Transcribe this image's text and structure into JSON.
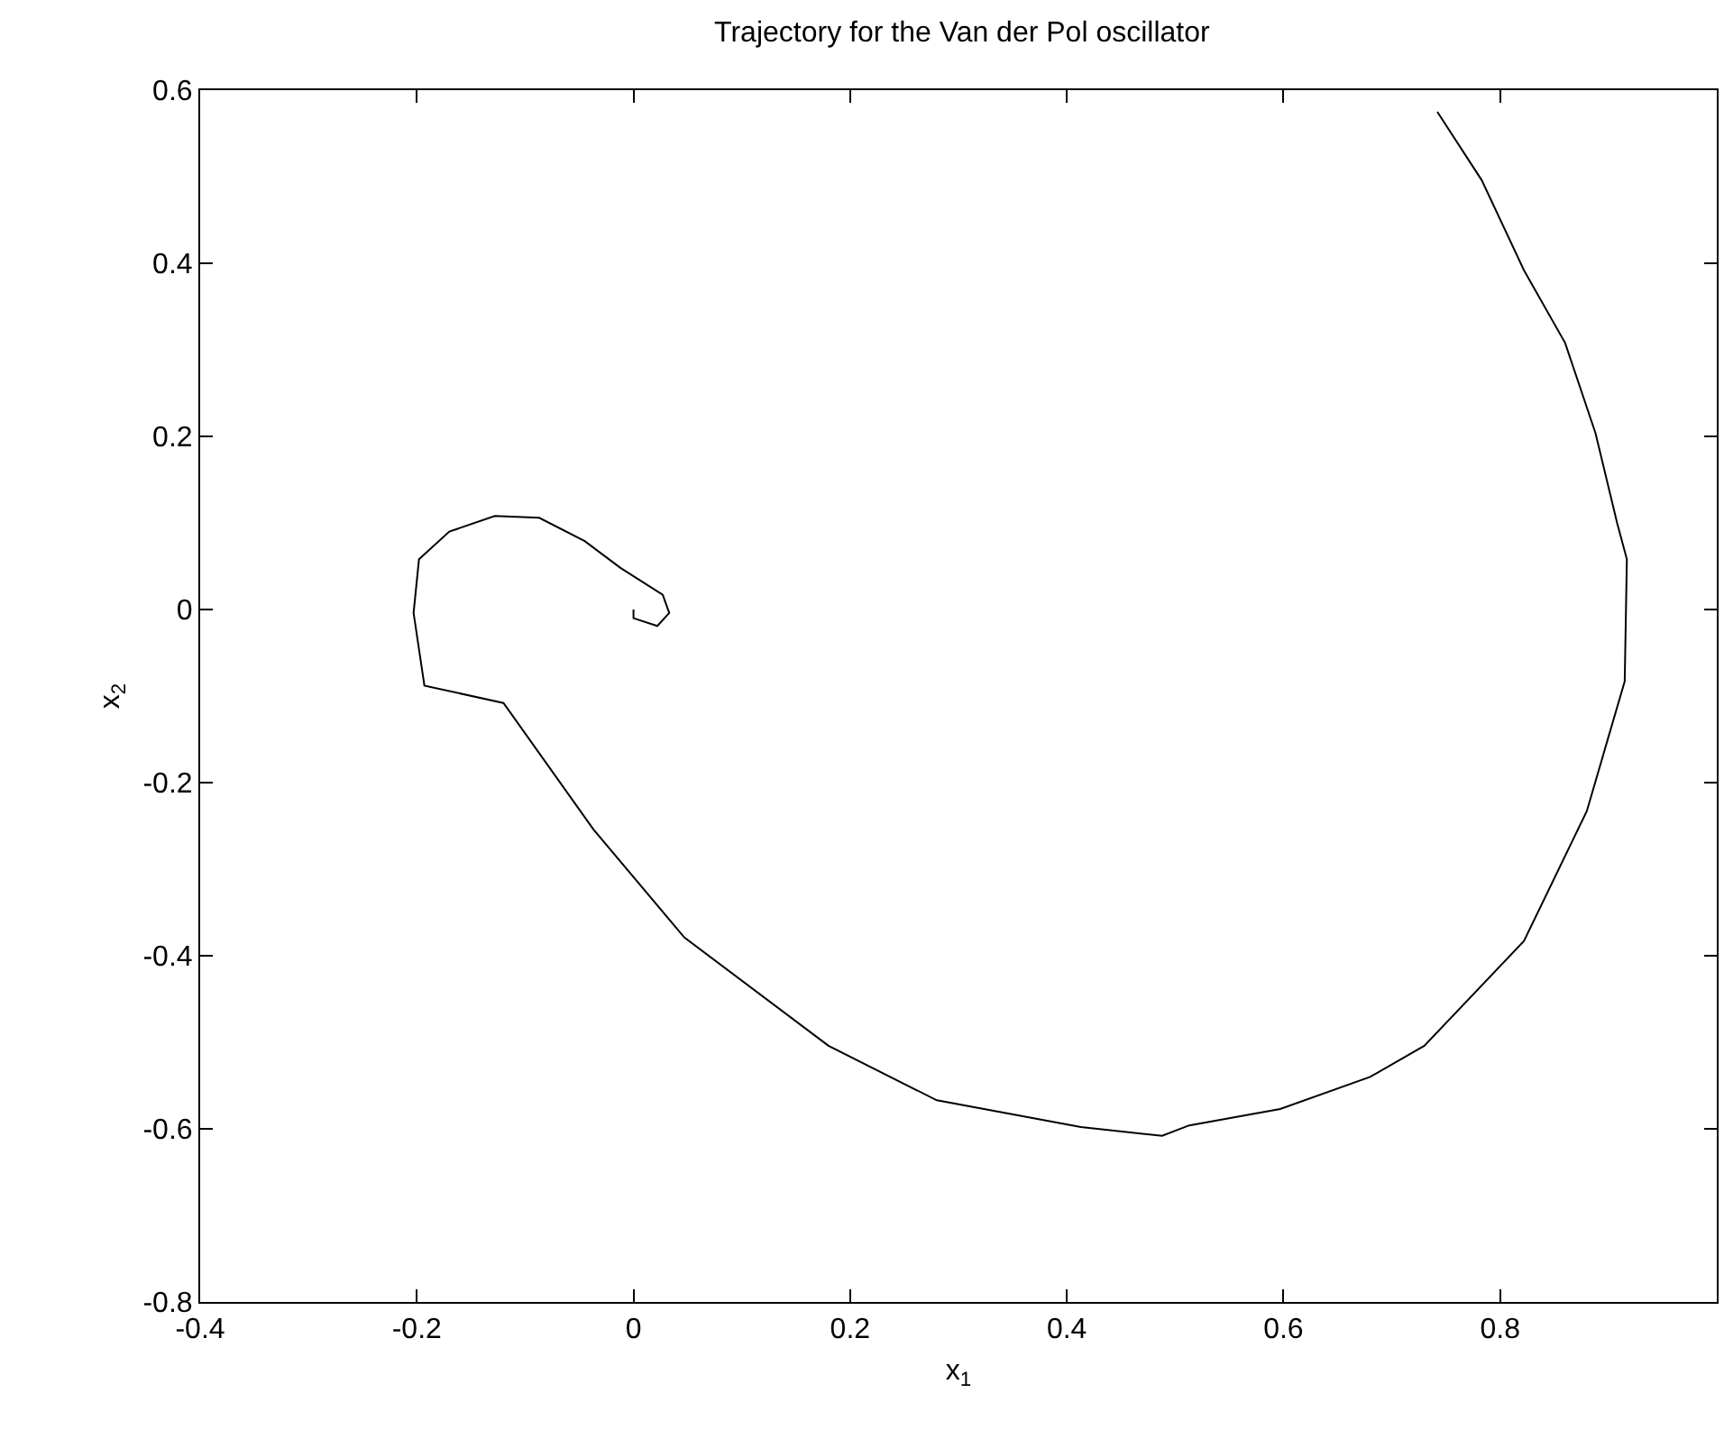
{
  "chart_data": {
    "type": "line",
    "title": "Trajectory for the Van der Pol oscillator",
    "xlabel": "x$_{1}$",
    "ylabel": "x$_{2}$",
    "x": [
      0.742,
      0.783,
      0.822,
      0.86,
      0.888,
      0.908,
      0.917,
      0.915,
      0.88,
      0.822,
      0.73,
      0.68,
      0.597,
      0.513,
      0.488,
      0.413,
      0.28,
      0.18,
      0.047,
      -0.037,
      -0.12,
      -0.193,
      -0.203,
      -0.198,
      -0.17,
      -0.128,
      -0.087,
      -0.045,
      -0.012,
      0.027,
      0.033,
      0.022,
      0.0,
      0.0
    ],
    "series": [
      {
        "color": "#000000",
        "values": [
          0.575,
          0.496,
          0.392,
          0.308,
          0.204,
          0.1,
          0.058,
          -0.083,
          -0.233,
          -0.383,
          -0.504,
          -0.54,
          -0.577,
          -0.596,
          -0.608,
          -0.598,
          -0.567,
          -0.504,
          -0.379,
          -0.254,
          -0.108,
          -0.088,
          -0.004,
          0.058,
          0.09,
          0.108,
          0.106,
          0.079,
          0.048,
          0.017,
          -0.004,
          -0.019,
          -0.01,
          0.0
        ]
      }
    ],
    "xlim": [
      -0.4,
      1
    ],
    "xticks": [
      -0.4,
      -0.2,
      0,
      0.2,
      0.4,
      0.6,
      0.8
    ],
    "ylim": [
      -0.8,
      0.6
    ],
    "yticks": [
      -0.8,
      -0.6,
      -0.4,
      -0.2,
      0,
      0.2,
      0.4,
      0.6
    ],
    "grid": false,
    "marker": "none",
    "line_style": "solid"
  }
}
